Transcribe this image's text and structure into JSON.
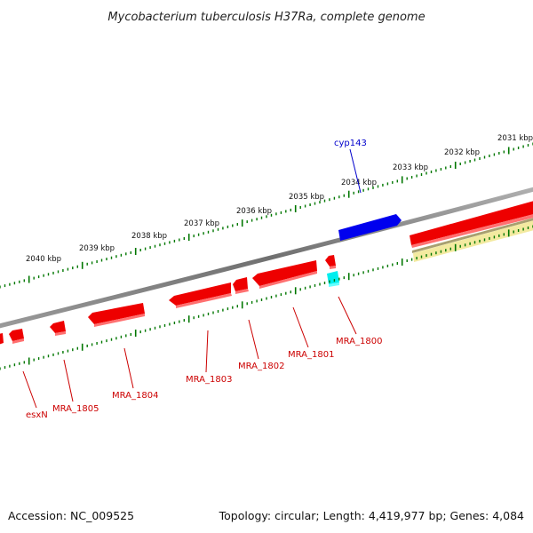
{
  "title": "Mycobacterium tuberculosis H37Ra, complete genome",
  "footer": {
    "accession": "Accession: NC_009525",
    "topology": "Topology: circular; Length: 4,419,977 bp; Genes: 4,084"
  },
  "colors": {
    "backbone": "#808080",
    "tick": "#007700",
    "reverse_gene": "#ff0000",
    "forward_gene": "#0000ff",
    "rna_gene": "#00ffff",
    "other_feature": "#f0e68c",
    "label_red": "#cc0000",
    "label_blue": "#0000cc"
  },
  "ruler": {
    "unit": "kbp",
    "labels": [
      "2031 kbp",
      "2032 kbp",
      "2033 kbp",
      "2034 kbp",
      "2035 kbp",
      "2036 kbp",
      "2037 kbp",
      "2038 kbp",
      "2039 kbp",
      "2040 kbp"
    ]
  },
  "gene_labels": [
    {
      "id": "cyp143",
      "text": "cyp143",
      "color": "blue"
    },
    {
      "id": "mra-1800",
      "text": "MRA_1800",
      "color": "red"
    },
    {
      "id": "mra-1801",
      "text": "MRA_1801",
      "color": "red"
    },
    {
      "id": "mra-1802",
      "text": "MRA_1802",
      "color": "red"
    },
    {
      "id": "mra-1803",
      "text": "MRA_1803",
      "color": "red"
    },
    {
      "id": "mra-1804",
      "text": "MRA_1804",
      "color": "red"
    },
    {
      "id": "mra-1805",
      "text": "MRA_1805",
      "color": "red"
    },
    {
      "id": "esxn",
      "text": "esxN",
      "color": "red"
    }
  ]
}
